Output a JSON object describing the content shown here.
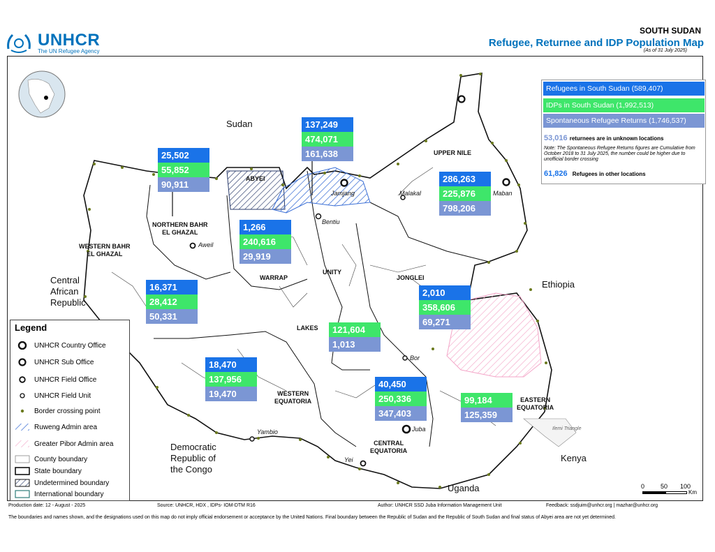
{
  "header": {
    "logo_text": "UNHCR",
    "logo_sub": "The UN Refugee Agency",
    "country": "SOUTH SUDAN",
    "title": "Refugee, Returnee and IDP Population  Map",
    "as_of": "(As of 31 July 2025)"
  },
  "summary": {
    "refugees": "Refugees in South Sudan  (589,407)",
    "idps": "IDPs in South Sudan    (1,992,513)",
    "returns": "Spontaneous Refugee Returns (1,746,537)",
    "unknown_value": "53,016",
    "unknown_text": "returnees are in unknown locations",
    "note": "Note: The Spontaneous Refugee Returns figures are Cumulative from October 2018 to 31 July 2025, the number could be higher due to unofficial border crossing",
    "other_value": "61,826",
    "other_text": "Refugees in other locations"
  },
  "colors": {
    "refugees": "#1a73e8",
    "idps": "#3ee66a",
    "returns": "#7b96d4",
    "ruweng_hatch": "#3b6fd6",
    "pibor_hatch": "#f4a6c8",
    "brand": "#0072bc"
  },
  "countries": {
    "sudan": "Sudan",
    "car": [
      "Central",
      "African",
      "Republic"
    ],
    "ethiopia": "Ethiopia",
    "drc": [
      "Democratic",
      "Republic of",
      "the Congo"
    ],
    "kenya": "Kenya",
    "uganda": "Uganda"
  },
  "regions": {
    "abyei": "ABYEI",
    "upper_nile": "UPPER NILE",
    "northern_bahr": [
      "NORTHERN BAHR",
      "EL GHAZAL"
    ],
    "western_bahr": [
      "WESTERN BAHR",
      "EL GHAZAL"
    ],
    "warrap": "WARRAP",
    "unity": "UNITY",
    "jonglei": "JONGLEI",
    "lakes": "LAKES",
    "western_equatoria": [
      "WESTERN",
      "EQUATORIA"
    ],
    "central_equatoria": [
      "CENTRAL",
      "EQUATORIA"
    ],
    "eastern_equatoria": [
      "EASTERN",
      "EQUATORIA"
    ],
    "ilemi": "Ilemi Triangle"
  },
  "cities": {
    "jamjang": "Jamjang",
    "malakal": "Malakal",
    "maban": "Maban",
    "bentiu": "Bentiu",
    "aweil": "Aweil",
    "bor": "Bor",
    "yambio": "Yambio",
    "juba": "Juba",
    "yei": "Yei"
  },
  "stats": {
    "abyei": {
      "refugees": "137,249",
      "idps": "474,071",
      "returns": "161,638"
    },
    "northern_bahr": {
      "refugees": "25,502",
      "idps": "55,852",
      "returns": "90,911"
    },
    "upper_nile": {
      "refugees": "286,263",
      "idps": "225,876",
      "returns": "798,206"
    },
    "warrap": {
      "refugees": "1,266",
      "idps": "240,616",
      "returns": "29,919"
    },
    "western_bahr": {
      "refugees": "16,371",
      "idps": "28,412",
      "returns": "50,331"
    },
    "jonglei": {
      "refugees": "2,010",
      "idps": "358,606",
      "returns": "69,271"
    },
    "lakes": {
      "idps": "121,604",
      "returns": "1,013"
    },
    "western_equatoria": {
      "refugees": "18,470",
      "idps": "137,956",
      "returns": "19,470"
    },
    "central_equatoria": {
      "refugees": "40,450",
      "idps": "250,336",
      "returns": "347,403"
    },
    "eastern_equatoria": {
      "idps": "99,184",
      "returns": "125,359"
    }
  },
  "legend": {
    "title": "Legend",
    "items": [
      "UNHCR Country Office",
      "UNHCR Sub Office",
      "UNHCR Field Office",
      "UNHCR Field Unit",
      "Border crossing point",
      "Ruweng Admin area",
      "Greater Pibor Admin area",
      "County boundary",
      "State boundary",
      "Undetermined boundary",
      "International boundary"
    ]
  },
  "scale": {
    "t0": "0",
    "t1": "50",
    "t2": "100",
    "unit": "Km"
  },
  "footer": {
    "production": "Production date: 12 - August - 2025",
    "source": "Source: UNHCR, HDX , IDPs- IOM-DTM R16",
    "author": "Author: UNHCR SSD Juba Information Management Unit",
    "feedback": "Feedback: ssdjuim@unhcr.org | mazhar@unhcr.org",
    "disclaimer": "The boundaries and names shown, and the designations used on this map do not imply official endorsement or acceptance by the United Nations. Final boundary between the Republic of Sudan and the Republic of South Sudan and final status of Abyei area are not yet determined."
  }
}
